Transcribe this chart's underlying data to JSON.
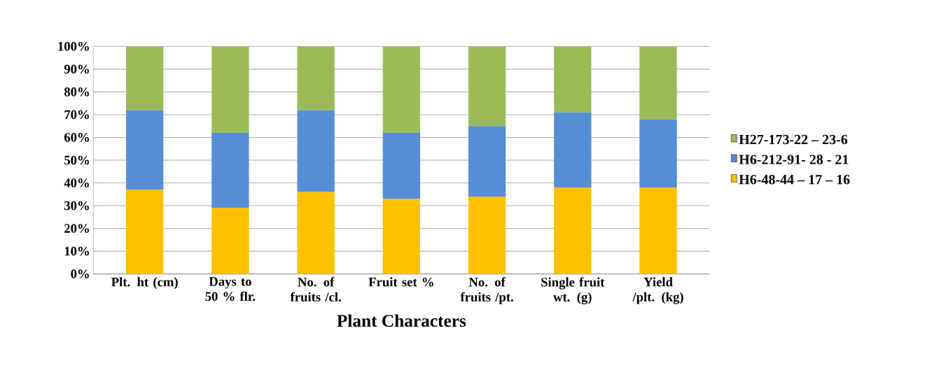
{
  "chart_data": {
    "type": "bar",
    "stacked": true,
    "xlabel": "Plant Characters",
    "categories": [
      "Plt. ht (cm)",
      "Days to 50 % flr.",
      "No. of fruits /cl.",
      "Fruit set %",
      "No. of fruits /pt.",
      "Single fruit wt. (g)",
      "Yield /plt. (kg)"
    ],
    "series": [
      {
        "name": "H6-48-44 – 17 – 16",
        "color": "#ffc000",
        "values": [
          37,
          29,
          36,
          33,
          34,
          38,
          38
        ]
      },
      {
        "name": "H6-212-91- 28 - 21",
        "color": "#558ed5",
        "values": [
          35,
          33,
          36,
          29,
          31,
          33,
          30
        ]
      },
      {
        "name": "H27-173-22 – 23-6",
        "color": "#9bbb59",
        "values": [
          28,
          38,
          28,
          38,
          35,
          29,
          32
        ]
      }
    ],
    "ylim": [
      0,
      100
    ],
    "yticks": [
      {
        "value": 0,
        "label": "0%"
      },
      {
        "value": 10,
        "label": "10%"
      },
      {
        "value": 20,
        "label": "20%"
      },
      {
        "value": 30,
        "label": "30%"
      },
      {
        "value": 40,
        "label": "40%"
      },
      {
        "value": 50,
        "label": "50%"
      },
      {
        "value": 60,
        "label": "60%"
      },
      {
        "value": 70,
        "label": "70%"
      },
      {
        "value": 80,
        "label": "80%"
      },
      {
        "value": 90,
        "label": "90%"
      },
      {
        "value": 100,
        "label": "100%"
      }
    ],
    "grid": "y",
    "legend": "right"
  }
}
